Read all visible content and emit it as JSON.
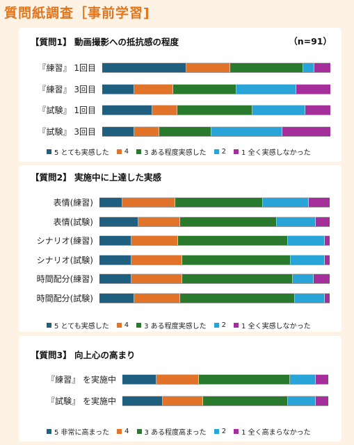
{
  "page_title": "質問紙調査［事前学習]",
  "colors": [
    "#1f5f80",
    "#e2732a",
    "#2a7a2e",
    "#29a4d8",
    "#a42f9a"
  ],
  "chart_data": [
    {
      "type": "bar",
      "stacked": true,
      "orientation": "horizontal",
      "title": "【質問1】 動画撮影への抵抗感の程度",
      "annotation": "（n=91）",
      "categories": [
        "『練習』 1回目",
        "『練習』 3回目",
        "『試験』 1回目",
        "『試験』 3回目"
      ],
      "series": [
        {
          "name": "5 とても実感した",
          "values": [
            37,
            14,
            22,
            14
          ]
        },
        {
          "name": "4",
          "values": [
            19,
            17,
            11,
            11
          ]
        },
        {
          "name": "3 ある程度実感した",
          "values": [
            32,
            28,
            33,
            23
          ]
        },
        {
          "name": "2",
          "values": [
            5,
            26,
            23,
            31
          ]
        },
        {
          "name": "1 全く実感しなかった",
          "values": [
            7,
            15,
            11,
            21
          ]
        }
      ],
      "xlim": [
        0,
        100
      ],
      "legend": "bottom"
    },
    {
      "type": "bar",
      "stacked": true,
      "orientation": "horizontal",
      "title": "【質問2】 実施中に上達した実感",
      "categories": [
        "表情(練習)",
        "表情(試験)",
        "シナリオ(練習)",
        "シナリオ(試験)",
        "時間配分(練習)",
        "時間配分(試験)"
      ],
      "series": [
        {
          "name": "5 とても実感した",
          "values": [
            10,
            17,
            14,
            14,
            14,
            15
          ]
        },
        {
          "name": "4",
          "values": [
            23,
            18,
            20,
            22,
            22,
            20
          ]
        },
        {
          "name": "3 ある程度実感した",
          "values": [
            38,
            42,
            48,
            47,
            48,
            50
          ]
        },
        {
          "name": "2",
          "values": [
            20,
            17,
            16,
            15,
            9,
            13
          ]
        },
        {
          "name": "1 全く実感しなかった",
          "values": [
            9,
            6,
            2,
            2,
            7,
            2
          ]
        }
      ],
      "xlim": [
        0,
        100
      ],
      "legend": "bottom"
    },
    {
      "type": "bar",
      "stacked": true,
      "orientation": "horizontal",
      "title": "【質問3】 向上心の高まり",
      "categories": [
        "『練習』 を実施中",
        "『試験』 を実施中"
      ],
      "series": [
        {
          "name": "5 非常に高まった",
          "values": [
            16,
            19
          ]
        },
        {
          "name": "4",
          "values": [
            20,
            19
          ]
        },
        {
          "name": "3 ある程度高まった",
          "values": [
            43,
            40
          ]
        },
        {
          "name": "2",
          "values": [
            12,
            13
          ]
        },
        {
          "name": "1 全く高まらなかった",
          "values": [
            6,
            6
          ]
        }
      ],
      "xlim": [
        0,
        100
      ],
      "legend": "bottom"
    }
  ]
}
